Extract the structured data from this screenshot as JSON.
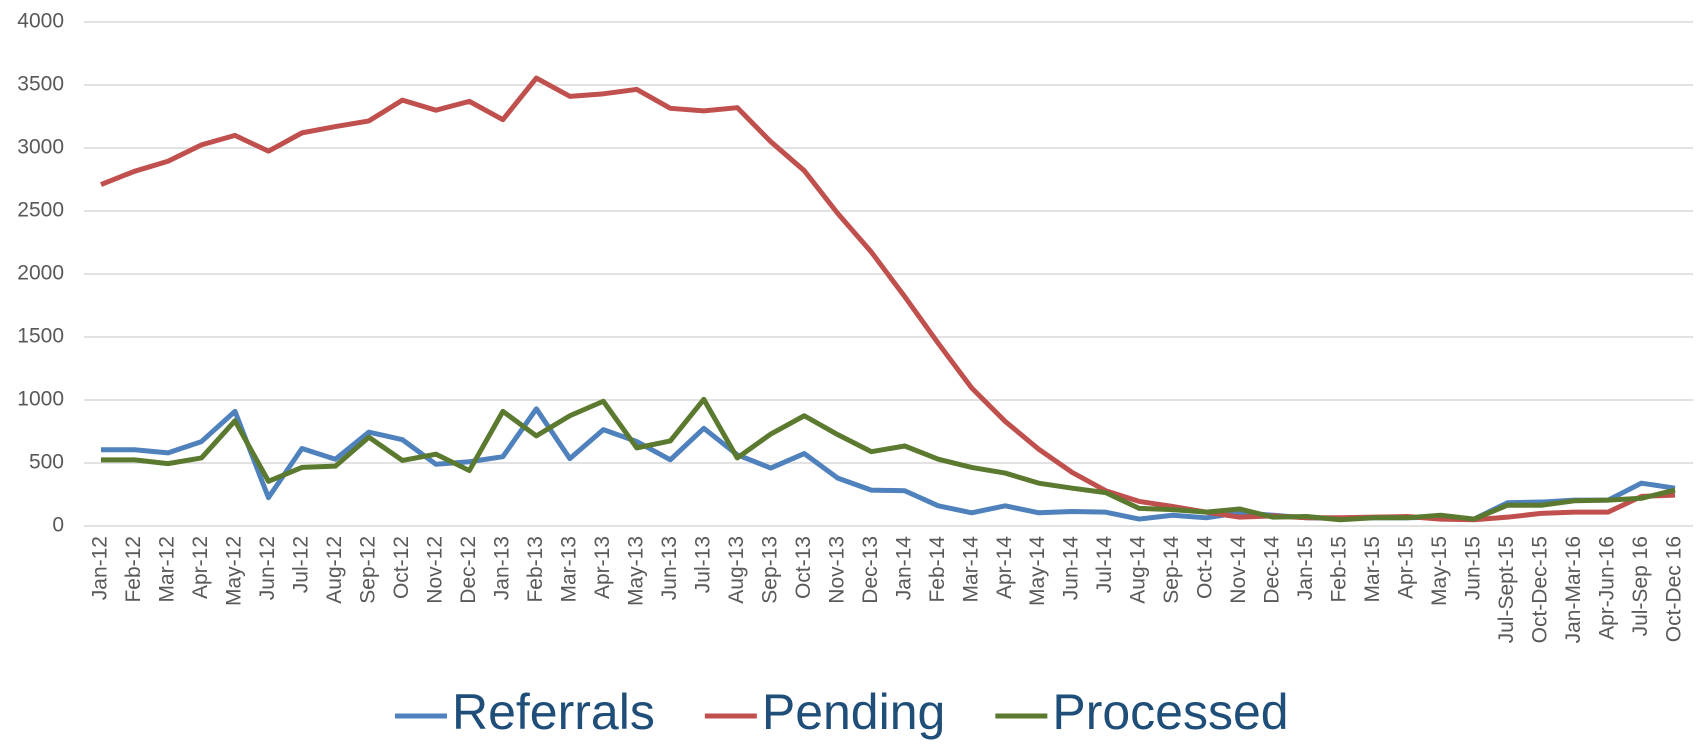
{
  "chart_data": {
    "type": "line",
    "categories": [
      "Jan-12",
      "Feb-12",
      "Mar-12",
      "Apr-12",
      "May-12",
      "Jun-12",
      "Jul-12",
      "Aug-12",
      "Sep-12",
      "Oct-12",
      "Nov-12",
      "Dec-12",
      "Jan-13",
      "Feb-13",
      "Mar-13",
      "Apr-13",
      "May-13",
      "Jun-13",
      "Jul-13",
      "Aug-13",
      "Sep-13",
      "Oct-13",
      "Nov-13",
      "Dec-13",
      "Jan-14",
      "Feb-14",
      "Mar-14",
      "Apr-14",
      "May-14",
      "Jun-14",
      "Jul-14",
      "Aug-14",
      "Sep-14",
      "Oct-14",
      "Nov-14",
      "Dec-14",
      "Jan-15",
      "Feb-15",
      "Mar-15",
      "Apr-15",
      "May-15",
      "Jun-15",
      "Jul-Sept-15",
      "Oct-Dec-15",
      "Jan-Mar-16",
      "Apr-Jun-16",
      "Jul-Sep 16",
      "Oct-Dec 16"
    ],
    "series": [
      {
        "name": "Referrals",
        "color": "#4f81bd",
        "values": [
          605,
          605,
          580,
          670,
          910,
          225,
          615,
          530,
          745,
          685,
          490,
          510,
          550,
          930,
          535,
          765,
          670,
          525,
          775,
          565,
          460,
          575,
          380,
          285,
          280,
          160,
          105,
          160,
          105,
          115,
          110,
          55,
          85,
          65,
          105,
          85,
          65,
          60,
          65,
          65,
          70,
          55,
          185,
          190,
          205,
          205,
          340,
          300
        ]
      },
      {
        "name": "Pending",
        "color": "#c0504d",
        "values": [
          2710,
          2815,
          2895,
          3025,
          3100,
          2975,
          3120,
          3170,
          3215,
          3380,
          3300,
          3370,
          3225,
          3555,
          3410,
          3430,
          3465,
          3315,
          3295,
          3320,
          3050,
          2820,
          2480,
          2175,
          1820,
          1450,
          1095,
          830,
          610,
          425,
          280,
          195,
          155,
          110,
          70,
          80,
          65,
          65,
          70,
          75,
          55,
          50,
          70,
          100,
          110,
          110,
          235,
          245
        ]
      },
      {
        "name": "Processed",
        "color": "#5b7a2f",
        "values": [
          525,
          525,
          495,
          540,
          835,
          355,
          465,
          475,
          705,
          520,
          570,
          440,
          910,
          715,
          875,
          990,
          620,
          675,
          1005,
          540,
          730,
          875,
          725,
          590,
          635,
          530,
          465,
          420,
          340,
          300,
          265,
          140,
          130,
          110,
          135,
          70,
          75,
          50,
          65,
          65,
          85,
          55,
          165,
          165,
          200,
          205,
          220,
          285
        ]
      }
    ],
    "ylim": [
      0,
      4000
    ],
    "yticks": [
      0,
      500,
      1000,
      1500,
      2000,
      2500,
      3000,
      3500,
      4000
    ],
    "grid": true,
    "legend": "bottom"
  }
}
